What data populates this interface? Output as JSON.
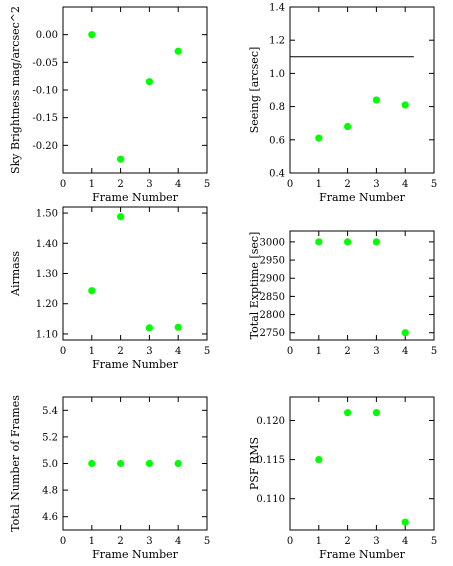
{
  "chart_data": [
    {
      "type": "scatter",
      "xlabel": "Frame Number",
      "ylabel": "Sky Brightness mag/arcsec^2",
      "xlim": [
        0,
        5
      ],
      "ylim": [
        -0.25,
        0.05
      ],
      "xticks": [
        0,
        1,
        2,
        3,
        4,
        5
      ],
      "yticks": [
        -0.2,
        -0.15,
        -0.1,
        -0.05,
        0.0
      ],
      "ytick_labels": [
        "-0.20",
        "-0.15",
        "-0.10",
        "-0.05",
        "0.00"
      ],
      "x": [
        1,
        2,
        3,
        4
      ],
      "y": [
        0.0,
        -0.225,
        -0.085,
        -0.03
      ],
      "marker_color": "#00ff00"
    },
    {
      "type": "scatter",
      "xlabel": "Frame Number",
      "ylabel": "Seeing [arcsec]",
      "xlim": [
        0,
        5
      ],
      "ylim": [
        0.4,
        1.4
      ],
      "xticks": [
        0,
        1,
        2,
        3,
        4,
        5
      ],
      "yticks": [
        0.4,
        0.6,
        0.8,
        1.0,
        1.2,
        1.4
      ],
      "ytick_labels": [
        "0.4",
        "0.6",
        "0.8",
        "1.0",
        "1.2",
        "1.4"
      ],
      "x": [
        1,
        2,
        3,
        4
      ],
      "y": [
        0.61,
        0.68,
        0.84,
        0.81
      ],
      "reference_line": {
        "y": 1.1,
        "x": [
          0,
          4.3
        ]
      },
      "marker_color": "#00ff00"
    },
    {
      "type": "scatter",
      "xlabel": "Frame Number",
      "ylabel": "Airmass",
      "xlim": [
        0,
        5
      ],
      "ylim": [
        1.08,
        1.52
      ],
      "xticks": [
        0,
        1,
        2,
        3,
        4,
        5
      ],
      "yticks": [
        1.1,
        1.2,
        1.3,
        1.4,
        1.5
      ],
      "ytick_labels": [
        "1.10",
        "1.20",
        "1.30",
        "1.40",
        "1.50"
      ],
      "x": [
        1,
        2,
        3,
        4
      ],
      "y": [
        1.243,
        1.488,
        1.12,
        1.122
      ],
      "marker_color": "#00ff00"
    },
    {
      "type": "scatter",
      "xlabel": "",
      "ylabel": "Total Exptime [sec]",
      "xlim": [
        0,
        5
      ],
      "ylim": [
        2730,
        3030
      ],
      "xticks": [
        0,
        1,
        2,
        3,
        4,
        5
      ],
      "yticks": [
        2750,
        2800,
        2850,
        2900,
        2950,
        3000
      ],
      "ytick_labels": [
        "2750",
        "2800",
        "2850",
        "2900",
        "2950",
        "3000"
      ],
      "x": [
        1,
        2,
        3,
        4
      ],
      "y": [
        3000,
        3000,
        3000,
        2750
      ],
      "marker_color": "#00ff00"
    },
    {
      "type": "scatter",
      "xlabel": "Frame Number",
      "ylabel": "Total Number of Frames",
      "xlim": [
        0,
        5
      ],
      "ylim": [
        4.5,
        5.5
      ],
      "xticks": [
        0,
        1,
        2,
        3,
        4,
        5
      ],
      "yticks": [
        4.6,
        4.8,
        5.0,
        5.2,
        5.4
      ],
      "ytick_labels": [
        "4.6",
        "4.8",
        "5.0",
        "5.2",
        "5.4"
      ],
      "x": [
        1,
        2,
        3,
        4
      ],
      "y": [
        5.0,
        5.0,
        5.0,
        5.0
      ],
      "marker_color": "#00ff00"
    },
    {
      "type": "scatter",
      "xlabel": "Frame Number",
      "ylabel": "PSF RMS",
      "xlim": [
        0,
        5
      ],
      "ylim": [
        0.106,
        0.123
      ],
      "xticks": [
        0,
        1,
        2,
        3,
        4,
        5
      ],
      "yticks": [
        0.11,
        0.115,
        0.12
      ],
      "ytick_labels": [
        "0.110",
        "0.115",
        "0.120"
      ],
      "x": [
        1,
        2,
        3,
        4
      ],
      "y": [
        0.115,
        0.121,
        0.121,
        0.107
      ],
      "marker_color": "#00ff00"
    }
  ]
}
